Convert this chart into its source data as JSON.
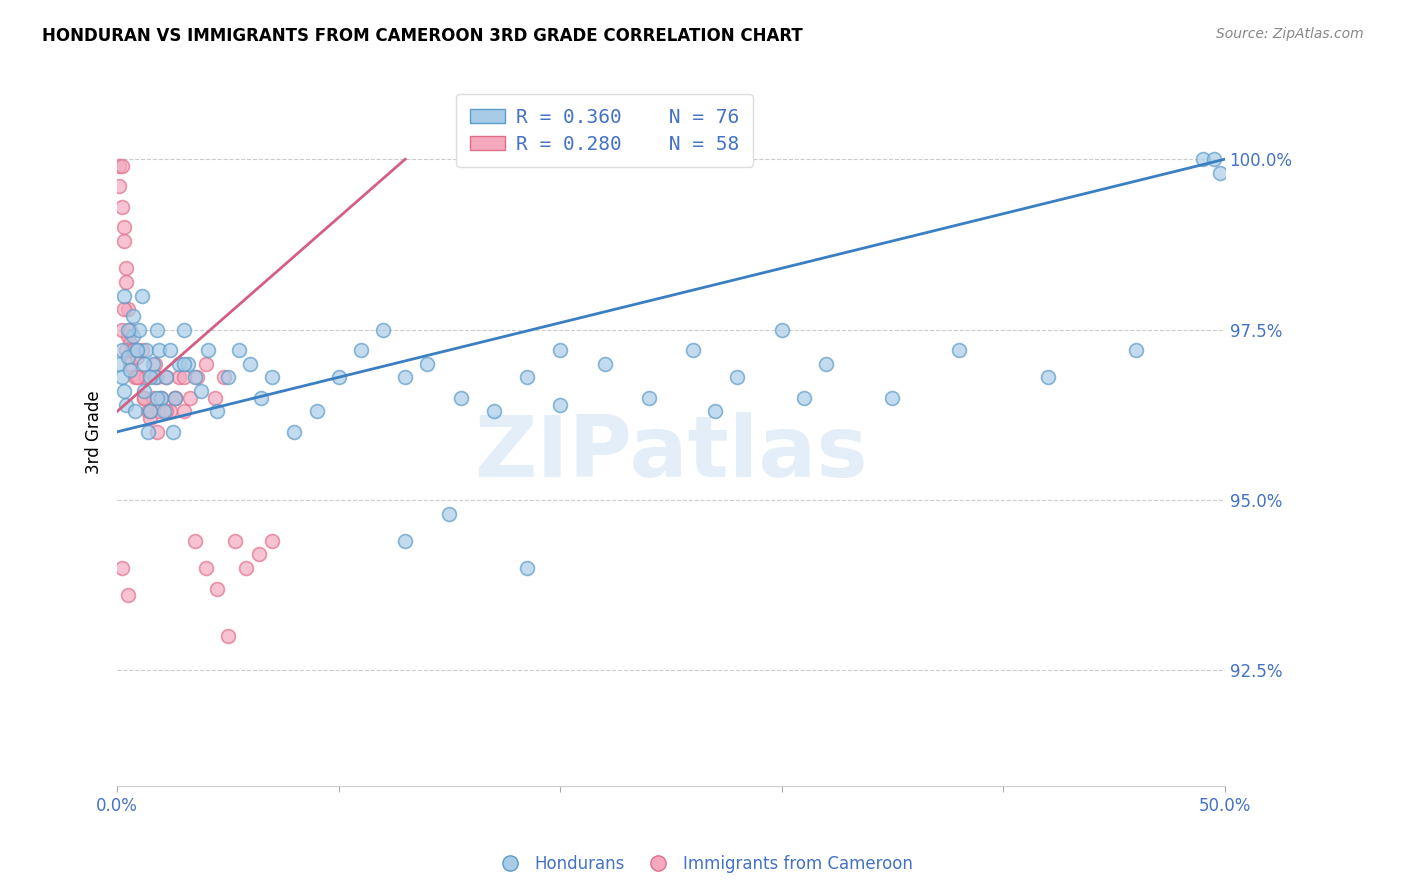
{
  "title": "HONDURAN VS IMMIGRANTS FROM CAMEROON 3RD GRADE CORRELATION CHART",
  "source": "Source: ZipAtlas.com",
  "ylabel": "3rd Grade",
  "ytick_values": [
    0.925,
    0.95,
    0.975,
    1.0
  ],
  "ytick_labels": [
    "92.5%",
    "95.0%",
    "97.5%",
    "100.0%"
  ],
  "xmin": 0.0,
  "xmax": 0.5,
  "ymin": 0.908,
  "ymax": 1.012,
  "xtick_positions": [
    0.0,
    0.1,
    0.2,
    0.3,
    0.4,
    0.5
  ],
  "xtick_labels": [
    "0.0%",
    "",
    "",
    "",
    "",
    "50.0%"
  ],
  "legend_blue_r": "R = 0.360",
  "legend_blue_n": "N = 76",
  "legend_pink_r": "R = 0.280",
  "legend_pink_n": "N = 58",
  "watermark": "ZIPatlas",
  "blue_scatter_color": "#a8cce8",
  "blue_edge_color": "#5b9bc8",
  "pink_scatter_color": "#f4a9be",
  "pink_edge_color": "#e0708a",
  "blue_line_color": "#3a7fc1",
  "pink_line_color": "#d45f85",
  "right_tick_color": "#4472C4",
  "blue_scatter_x": [
    0.001,
    0.002,
    0.002,
    0.003,
    0.004,
    0.005,
    0.006,
    0.007,
    0.008,
    0.009,
    0.01,
    0.011,
    0.012,
    0.013,
    0.014,
    0.015,
    0.016,
    0.017,
    0.018,
    0.019,
    0.02,
    0.022,
    0.024,
    0.026,
    0.028,
    0.03,
    0.032,
    0.035,
    0.038,
    0.041,
    0.045,
    0.05,
    0.055,
    0.06,
    0.065,
    0.07,
    0.08,
    0.09,
    0.1,
    0.11,
    0.12,
    0.13,
    0.14,
    0.155,
    0.17,
    0.185,
    0.2,
    0.22,
    0.24,
    0.26,
    0.28,
    0.3,
    0.32,
    0.35,
    0.38,
    0.42,
    0.46,
    0.49,
    0.495,
    0.498,
    0.003,
    0.005,
    0.007,
    0.009,
    0.012,
    0.015,
    0.018,
    0.021,
    0.025,
    0.03,
    0.2,
    0.13,
    0.27,
    0.31,
    0.15,
    0.185
  ],
  "blue_scatter_y": [
    0.97,
    0.968,
    0.972,
    0.966,
    0.964,
    0.971,
    0.969,
    0.974,
    0.963,
    0.972,
    0.975,
    0.98,
    0.966,
    0.972,
    0.96,
    0.963,
    0.97,
    0.968,
    0.975,
    0.972,
    0.965,
    0.968,
    0.972,
    0.965,
    0.97,
    0.975,
    0.97,
    0.968,
    0.966,
    0.972,
    0.963,
    0.968,
    0.972,
    0.97,
    0.965,
    0.968,
    0.96,
    0.963,
    0.968,
    0.972,
    0.975,
    0.968,
    0.97,
    0.965,
    0.963,
    0.968,
    0.972,
    0.97,
    0.965,
    0.972,
    0.968,
    0.975,
    0.97,
    0.965,
    0.972,
    0.968,
    0.972,
    1.0,
    1.0,
    0.998,
    0.98,
    0.975,
    0.977,
    0.972,
    0.97,
    0.968,
    0.965,
    0.963,
    0.96,
    0.97,
    0.964,
    0.944,
    0.963,
    0.965,
    0.948,
    0.94
  ],
  "pink_scatter_x": [
    0.001,
    0.001,
    0.002,
    0.002,
    0.003,
    0.003,
    0.004,
    0.004,
    0.005,
    0.005,
    0.006,
    0.006,
    0.007,
    0.008,
    0.009,
    0.01,
    0.011,
    0.012,
    0.013,
    0.014,
    0.015,
    0.016,
    0.017,
    0.018,
    0.019,
    0.02,
    0.022,
    0.024,
    0.026,
    0.028,
    0.03,
    0.033,
    0.036,
    0.04,
    0.044,
    0.048,
    0.053,
    0.058,
    0.064,
    0.07,
    0.002,
    0.003,
    0.004,
    0.006,
    0.007,
    0.009,
    0.012,
    0.015,
    0.018,
    0.022,
    0.026,
    0.03,
    0.035,
    0.04,
    0.045,
    0.05,
    0.002,
    0.005
  ],
  "pink_scatter_y": [
    0.999,
    0.996,
    0.999,
    0.993,
    0.99,
    0.988,
    0.984,
    0.982,
    0.978,
    0.974,
    0.973,
    0.97,
    0.972,
    0.968,
    0.971,
    0.968,
    0.972,
    0.965,
    0.968,
    0.963,
    0.962,
    0.965,
    0.97,
    0.968,
    0.963,
    0.965,
    0.968,
    0.963,
    0.965,
    0.968,
    0.963,
    0.965,
    0.968,
    0.97,
    0.965,
    0.968,
    0.944,
    0.94,
    0.942,
    0.944,
    0.975,
    0.978,
    0.972,
    0.975,
    0.972,
    0.968,
    0.965,
    0.963,
    0.96,
    0.963,
    0.965,
    0.968,
    0.944,
    0.94,
    0.937,
    0.93,
    0.94,
    0.936
  ],
  "blue_line_x": [
    0.0,
    0.5
  ],
  "blue_line_y": [
    0.96,
    1.0
  ],
  "pink_line_x": [
    0.0,
    0.13
  ],
  "pink_line_y": [
    0.963,
    1.0
  ]
}
